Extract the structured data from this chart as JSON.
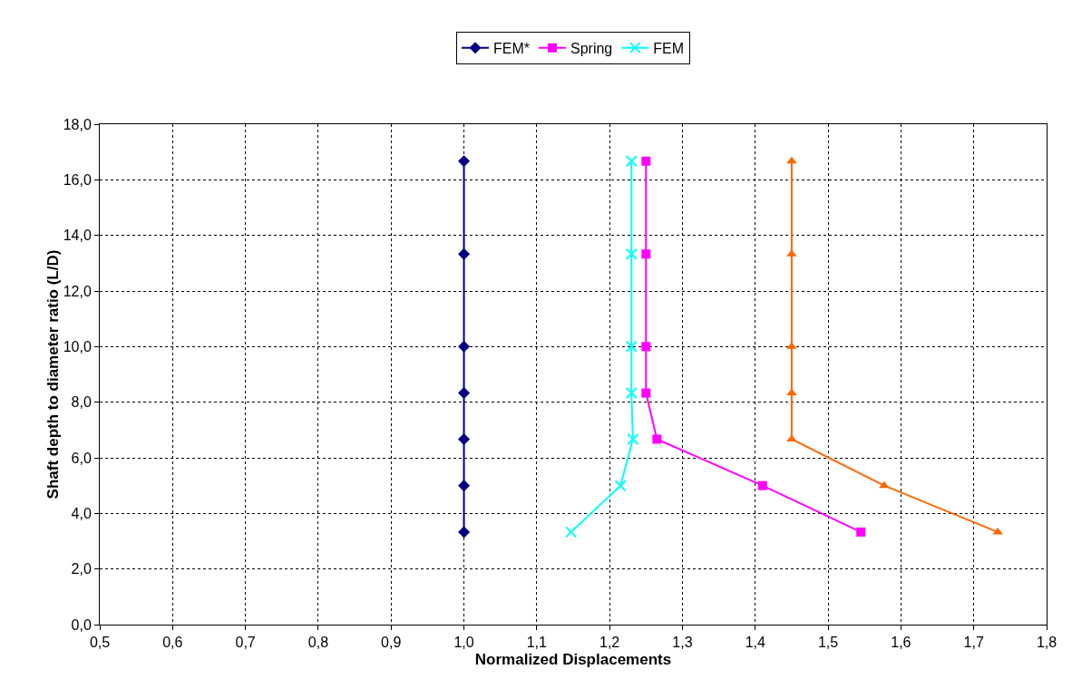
{
  "chart_data": {
    "type": "line",
    "xlabel": "Normalized Displacements",
    "ylabel": "Shaft depth to diameter ratio (L/D)",
    "series": [
      {
        "name": "FEM*",
        "color": "#000080",
        "marker": "diamond",
        "x": [
          1.0,
          1.0,
          1.0,
          1.0,
          1.0,
          1.0,
          1.0
        ],
        "values": [
          16.67,
          13.33,
          10.0,
          8.33,
          6.67,
          5.0,
          3.33
        ]
      },
      {
        "name": "Spring",
        "color": "#ff00ff",
        "marker": "square",
        "x": [
          1.25,
          1.25,
          1.25,
          1.25,
          1.265,
          1.41,
          1.545
        ],
        "values": [
          16.67,
          13.33,
          10.0,
          8.33,
          6.67,
          5.0,
          3.33
        ]
      },
      {
        "color": "#ff6600",
        "marker": "triangle",
        "x": [
          1.45,
          1.45,
          1.45,
          1.45,
          1.45,
          1.577,
          1.733
        ],
        "values": [
          16.67,
          13.33,
          10.0,
          8.33,
          6.67,
          5.0,
          3.33
        ]
      },
      {
        "name": "FEM",
        "color": "#00ffff",
        "marker": "cross",
        "x": [
          1.23,
          1.23,
          1.23,
          1.23,
          1.232,
          1.215,
          1.147
        ],
        "values": [
          16.67,
          13.33,
          10.0,
          8.33,
          6.67,
          5.0,
          3.33
        ]
      }
    ],
    "xlim": [
      0.5,
      1.8
    ],
    "xticks": [
      {
        "value": 0.5,
        "label": "0,5"
      },
      {
        "value": 0.6,
        "label": "0,6"
      },
      {
        "value": 0.7,
        "label": "0,7"
      },
      {
        "value": 0.8,
        "label": "0,8"
      },
      {
        "value": 0.9,
        "label": "0,9"
      },
      {
        "value": 1.0,
        "label": "1,0"
      },
      {
        "value": 1.1,
        "label": "1,1"
      },
      {
        "value": 1.2,
        "label": "1,2"
      },
      {
        "value": 1.3,
        "label": "1,3"
      },
      {
        "value": 1.4,
        "label": "1,4"
      },
      {
        "value": 1.5,
        "label": "1,5"
      },
      {
        "value": 1.6,
        "label": "1,6"
      },
      {
        "value": 1.7,
        "label": "1,7"
      },
      {
        "value": 1.8,
        "label": "1,8"
      }
    ],
    "ylim": [
      0,
      18
    ],
    "yticks": [
      {
        "value": 0,
        "label": "0,0"
      },
      {
        "value": 2,
        "label": "2,0"
      },
      {
        "value": 4,
        "label": "4,0"
      },
      {
        "value": 6,
        "label": "6,0"
      },
      {
        "value": 8,
        "label": "8,0"
      },
      {
        "value": 10,
        "label": "10,0"
      },
      {
        "value": 12,
        "label": "12,0"
      },
      {
        "value": 14,
        "label": "14,0"
      },
      {
        "value": 16,
        "label": "16,0"
      },
      {
        "value": 18,
        "label": "18,0"
      }
    ],
    "grid": true,
    "legend": "top",
    "line_style": "solid"
  }
}
